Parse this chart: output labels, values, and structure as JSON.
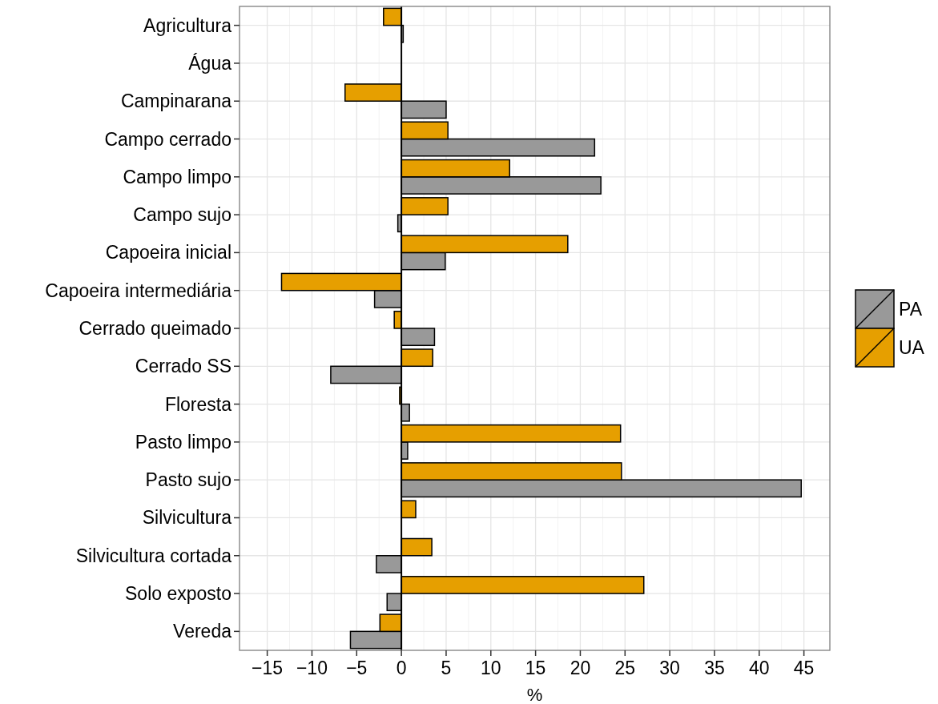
{
  "chart_data": {
    "type": "bar",
    "orientation": "horizontal",
    "xlabel": "%",
    "categories": [
      "Agricultura",
      "Água",
      "Campinarana",
      "Campo cerrado",
      "Campo limpo",
      "Campo sujo",
      "Capoeira inicial",
      "Capoeira intermediária",
      "Cerrado queimado",
      "Cerrado SS",
      "Floresta",
      "Pasto limpo",
      "Pasto sujo",
      "Silvicultura",
      "Silvicultura cortada",
      "Solo exposto",
      "Vereda"
    ],
    "series": [
      {
        "name": "PA",
        "color": "#999999",
        "values": [
          0.2,
          null,
          5.0,
          21.6,
          22.3,
          -0.4,
          4.9,
          -3.0,
          3.7,
          -7.9,
          0.9,
          0.7,
          44.7,
          null,
          -2.8,
          -1.6,
          -5.7
        ]
      },
      {
        "name": "UA",
        "color": "#e69f00",
        "values": [
          -2.0,
          null,
          -6.3,
          5.2,
          12.1,
          5.2,
          18.6,
          -13.4,
          -0.8,
          3.5,
          -0.2,
          24.5,
          24.6,
          1.6,
          3.4,
          27.1,
          -2.4
        ]
      }
    ],
    "xlim": [
      -18.1,
      47.9
    ],
    "xticks": [
      -15,
      -10,
      -5,
      0,
      5,
      10,
      15,
      20,
      25,
      30,
      35,
      40,
      45
    ],
    "grid": true,
    "legend": "right"
  }
}
